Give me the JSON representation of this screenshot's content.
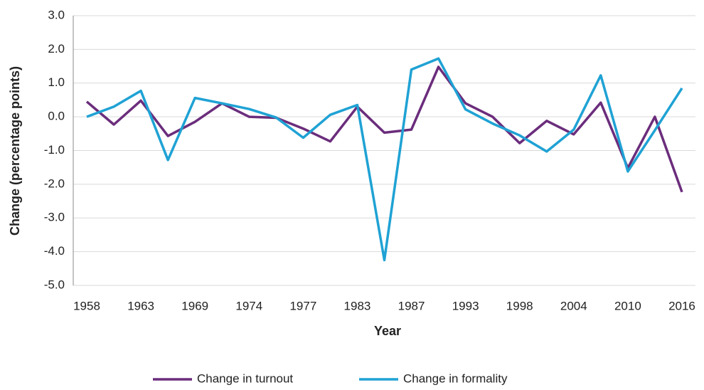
{
  "chart_data": {
    "type": "line",
    "x_label": "Year",
    "y_label": "Change (percentage points)",
    "categories": [
      "1958",
      null,
      "1963",
      null,
      "1969",
      null,
      "1974",
      null,
      "1977",
      null,
      "1983",
      null,
      "1987",
      null,
      "1993",
      null,
      "1998",
      null,
      "2004",
      null,
      "2010",
      null,
      "2016"
    ],
    "series": [
      {
        "name": "Change in turnout",
        "color": "#6b2d7c",
        "values": [
          0.45,
          -0.23,
          0.48,
          -0.57,
          -0.15,
          0.4,
          0.0,
          -0.03,
          -0.35,
          -0.73,
          0.3,
          -0.47,
          -0.38,
          1.48,
          0.4,
          0.0,
          -0.78,
          -0.12,
          -0.52,
          0.42,
          -1.52,
          0.0,
          -2.23
        ]
      },
      {
        "name": "Change in formality",
        "color": "#1fa2d4",
        "values": [
          0.0,
          0.3,
          0.77,
          -1.28,
          0.56,
          0.4,
          0.23,
          -0.02,
          -0.62,
          0.06,
          0.35,
          -4.25,
          1.4,
          1.73,
          0.22,
          -0.2,
          -0.55,
          -1.03,
          -0.38,
          1.23,
          -1.62,
          -0.4,
          0.85
        ]
      }
    ],
    "ylim": [
      -5,
      3
    ],
    "yticks": [
      {
        "value": -5,
        "label": "-5.0"
      },
      {
        "value": -4,
        "label": "-4.0"
      },
      {
        "value": -3,
        "label": "-3.0"
      },
      {
        "value": -2,
        "label": "-2.0"
      },
      {
        "value": -1,
        "label": "-1.0"
      },
      {
        "value": 0,
        "label": "0.0"
      },
      {
        "value": 1,
        "label": "1.0"
      },
      {
        "value": 2,
        "label": "2.0"
      },
      {
        "value": 3,
        "label": "3.0"
      }
    ],
    "grid": true,
    "legend": "bottom"
  }
}
